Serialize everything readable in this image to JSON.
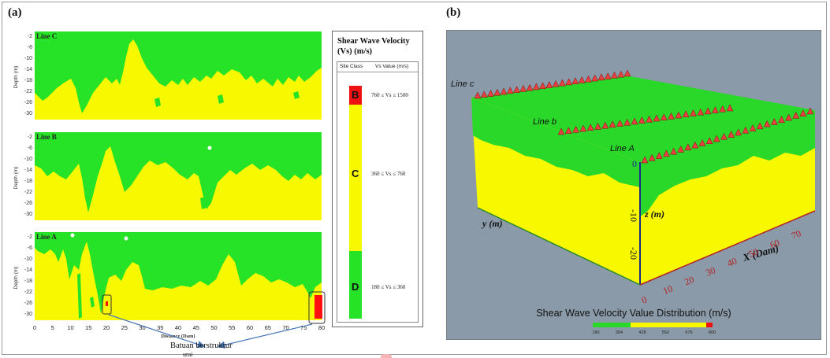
{
  "panel_a": {
    "tag": "(a)",
    "sections": [
      {
        "name": "Line C"
      },
      {
        "name": "Line B"
      },
      {
        "name": "Line A"
      }
    ],
    "ylabel": "Depth (m)",
    "yticks": [
      "-2",
      "-6",
      "-10",
      "-14",
      "-18",
      "-22",
      "-26",
      "-30"
    ],
    "xticks": [
      "0",
      "5",
      "10",
      "15",
      "20",
      "25",
      "30",
      "35",
      "40",
      "45",
      "50",
      "55",
      "60",
      "65",
      "70",
      "75",
      "80"
    ],
    "xlabel": "Distance (Dam)",
    "annotation": "Batuan berstruktur",
    "annotation_line2": "urai",
    "colors": {
      "green": "#27e327",
      "yellow": "#f8f800",
      "red": "#ff1010"
    }
  },
  "legend": {
    "title": "Shear Wave Velocity (Vs) (m/s)",
    "col_site": "Site Class",
    "col_vs": "Vs Value (m/s)",
    "classes": [
      {
        "letter": "B",
        "range": "760 ≤ Vs ≤ 1500",
        "color": "#ee1111"
      },
      {
        "letter": "C",
        "range": "360 ≤ Vs ≤ 760",
        "color": "#f8f800"
      },
      {
        "letter": "D",
        "range": "180 ≤ Vs ≤ 360",
        "color": "#27e327"
      }
    ]
  },
  "panel_b": {
    "tag": "(b)",
    "lines": {
      "c": "Line c",
      "b": "Line b",
      "a": "Line A"
    },
    "axis_y": "y (m)",
    "axis_z": "z (m)",
    "axis_x": "X (Dam)",
    "z_ticks": [
      "0",
      "-10",
      "-20"
    ],
    "x_ticks": [
      "0",
      "10",
      "20",
      "30",
      "40",
      "50",
      "60",
      "70"
    ],
    "colorbar_title": "Shear Wave Velocity Value Distribution (m/s)",
    "colorbar_ticks": [
      "180",
      "304",
      "428",
      "552",
      "676",
      "800"
    ],
    "background": "#8a9aa8"
  }
}
